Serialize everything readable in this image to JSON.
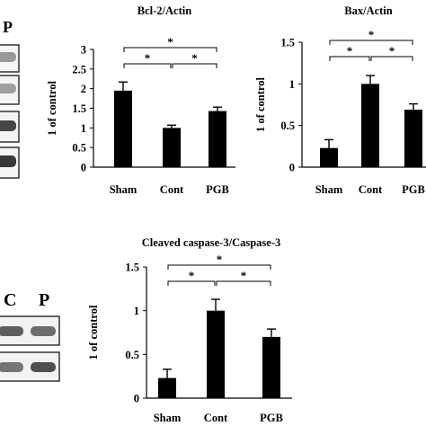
{
  "figure": {
    "blot_labels_top": [
      "P"
    ],
    "blot_labels_bottom": [
      "C",
      "P"
    ]
  },
  "chart_data": [
    {
      "type": "bar",
      "title": "Bcl-2/Actin",
      "ylabel": "1 of control",
      "categories": [
        "Sham",
        "Cont",
        "PGB"
      ],
      "values": [
        1.95,
        1.0,
        1.43
      ],
      "errors": [
        0.22,
        0.07,
        0.1
      ],
      "ylim": [
        0,
        3
      ],
      "yticks": [
        "0",
        "0.5",
        "1",
        "1.5",
        "2",
        "2.5",
        "3"
      ],
      "significance": [
        "*",
        "*",
        "*"
      ],
      "bar_color": "#000000"
    },
    {
      "type": "bar",
      "title": "Bax/Actin",
      "ylabel": "1 of control",
      "categories": [
        "Sham",
        "Cont",
        "PGB"
      ],
      "values": [
        0.23,
        1.0,
        0.69
      ],
      "errors": [
        0.1,
        0.1,
        0.07
      ],
      "ylim": [
        0,
        1.5
      ],
      "yticks": [
        "0",
        "0.5",
        "1",
        "1.5"
      ],
      "significance": [
        "*",
        "*",
        "*"
      ],
      "bar_color": "#000000"
    },
    {
      "type": "bar",
      "title": "Cleaved caspase-3/Caspase-3",
      "ylabel": "1 of control",
      "categories": [
        "Sham",
        "Cont",
        "PGB"
      ],
      "values": [
        0.23,
        1.0,
        0.7
      ],
      "errors": [
        0.1,
        0.13,
        0.09
      ],
      "ylim": [
        0,
        1.5
      ],
      "yticks": [
        "0",
        "0.5",
        "1",
        "1.5"
      ],
      "significance": [
        "*",
        "*",
        "*"
      ],
      "bar_color": "#000000"
    }
  ]
}
